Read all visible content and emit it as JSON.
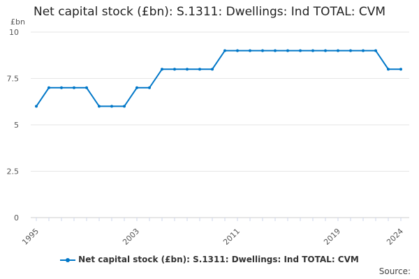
{
  "chart_data": {
    "type": "line",
    "title": "Net capital stock (£bn): S.1311: Dwellings: Ind TOTAL: CVM",
    "ylabel": "£bn",
    "xlabel": "",
    "ylim": [
      0,
      10
    ],
    "yticks": [
      "0",
      "2.5",
      "5",
      "7.5",
      "10"
    ],
    "ytick_values": [
      0,
      2.5,
      5,
      7.5,
      10
    ],
    "xticks": [
      "1995",
      "2003",
      "2011",
      "2019",
      "2024"
    ],
    "x": [
      1995,
      1996,
      1997,
      1998,
      1999,
      2000,
      2001,
      2002,
      2003,
      2004,
      2005,
      2006,
      2007,
      2008,
      2009,
      2010,
      2011,
      2012,
      2013,
      2014,
      2015,
      2016,
      2017,
      2018,
      2019,
      2020,
      2021,
      2022,
      2023,
      2024
    ],
    "series": [
      {
        "name": "Net capital stock (£bn): S.1311: Dwellings: Ind TOTAL: CVM",
        "color": "#0077c8",
        "values": [
          6,
          7,
          7,
          7,
          7,
          6,
          6,
          6,
          7,
          7,
          8,
          8,
          8,
          8,
          8,
          9,
          9,
          9,
          9,
          9,
          9,
          9,
          9,
          9,
          9,
          9,
          9,
          9,
          8,
          8
        ]
      }
    ],
    "grid": true,
    "legend_position": "bottom"
  },
  "source_label": "Source:"
}
